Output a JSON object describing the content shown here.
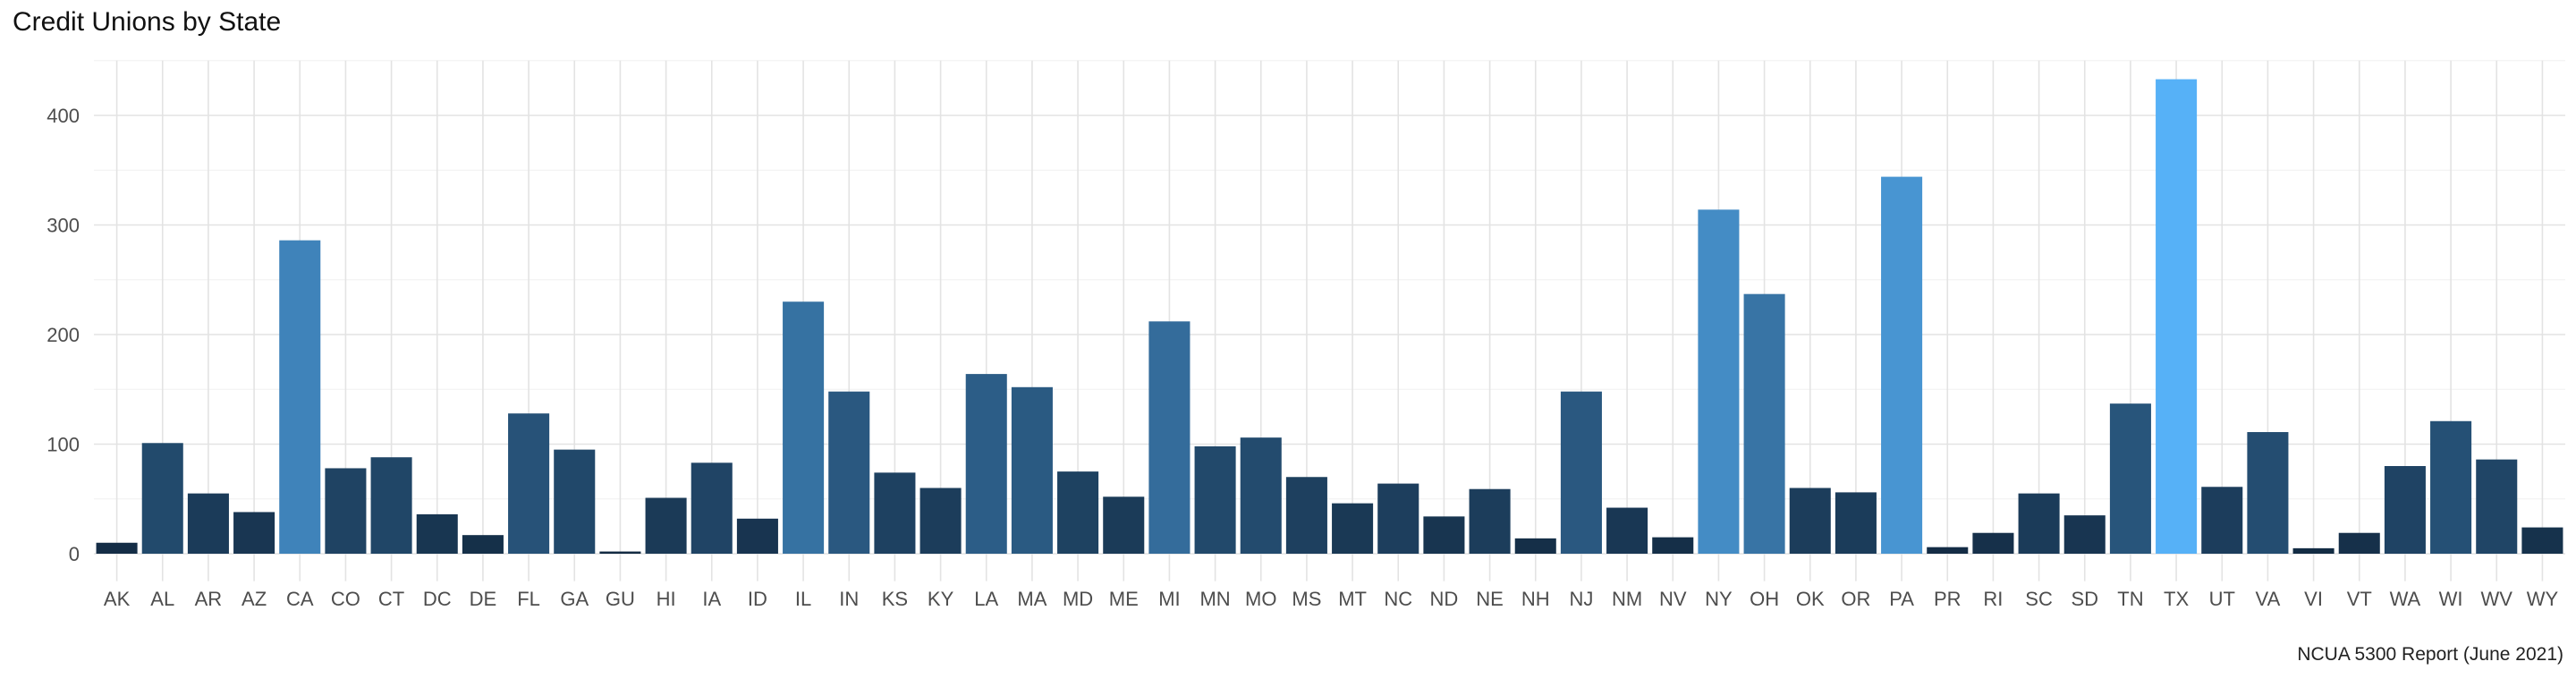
{
  "chart_data": {
    "type": "bar",
    "title": "Credit Unions by State",
    "caption": "NCUA 5300 Report (June 2021)",
    "xlabel": "",
    "ylabel": "",
    "ylim": [
      0,
      450
    ],
    "yticks": [
      0,
      100,
      200,
      300,
      400
    ],
    "grid": true,
    "legend": "none",
    "color_low": "#132B43",
    "color_high": "#56B1F7",
    "categories": [
      "AK",
      "AL",
      "AR",
      "AZ",
      "CA",
      "CO",
      "CT",
      "DC",
      "DE",
      "FL",
      "GA",
      "GU",
      "HI",
      "IA",
      "ID",
      "IL",
      "IN",
      "KS",
      "KY",
      "LA",
      "MA",
      "MD",
      "ME",
      "MI",
      "MN",
      "MO",
      "MS",
      "MT",
      "NC",
      "ND",
      "NE",
      "NH",
      "NJ",
      "NM",
      "NV",
      "NY",
      "OH",
      "OK",
      "OR",
      "PA",
      "PR",
      "RI",
      "SC",
      "SD",
      "TN",
      "TX",
      "UT",
      "VA",
      "VI",
      "VT",
      "WA",
      "WI",
      "WV",
      "WY"
    ],
    "values": [
      10,
      101,
      55,
      38,
      286,
      78,
      88,
      36,
      17,
      128,
      95,
      2,
      51,
      83,
      32,
      230,
      148,
      74,
      60,
      164,
      152,
      75,
      52,
      212,
      98,
      106,
      70,
      46,
      64,
      34,
      59,
      14,
      148,
      42,
      15,
      314,
      237,
      60,
      56,
      344,
      6,
      19,
      55,
      35,
      137,
      433,
      61,
      111,
      5,
      19,
      80,
      121,
      86,
      24
    ]
  }
}
